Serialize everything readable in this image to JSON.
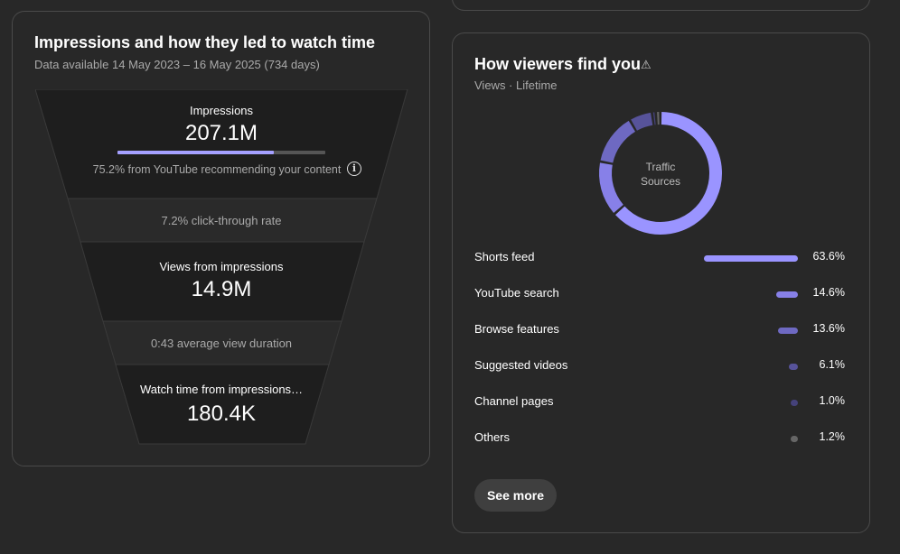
{
  "impressions_card": {
    "title": "Impressions and how they led to watch time",
    "subtitle": "Data available 14 May 2023 – 16 May 2025 (734 days)",
    "impressions": {
      "label": "Impressions",
      "value": "207.1M",
      "youtube_share": 0.752,
      "note": "75.2% from YouTube recommending your content"
    },
    "ctr": "7.2% click-through rate",
    "views": {
      "label": "Views from impressions",
      "value": "14.9M"
    },
    "avg_duration": "0:43 average view duration",
    "watch_time": {
      "label": "Watch time from impressions…",
      "value": "180.4K"
    },
    "colors": {
      "bar_fill": "#a5a0ff",
      "bar_track": "#555555"
    }
  },
  "traffic_card": {
    "title": "How viewers find you",
    "subtitle": "Views · Lifetime",
    "donut_label_line1": "Traffic",
    "donut_label_line2": "Sources",
    "sources": [
      {
        "label": "Shorts feed",
        "pct": "63.6%",
        "value": 63.6,
        "color": "#9a94ff"
      },
      {
        "label": "YouTube search",
        "pct": "14.6%",
        "value": 14.6,
        "color": "#8780e8"
      },
      {
        "label": "Browse features",
        "pct": "13.6%",
        "value": 13.6,
        "color": "#6e69c2"
      },
      {
        "label": "Suggested videos",
        "pct": "6.1%",
        "value": 6.1,
        "color": "#57539a"
      },
      {
        "label": "Channel pages",
        "pct": "1.0%",
        "value": 1.0,
        "color": "#45427a"
      },
      {
        "label": "Others",
        "pct": "1.2%",
        "value": 1.2,
        "color": "#666666"
      }
    ],
    "see_more_label": "See more"
  }
}
